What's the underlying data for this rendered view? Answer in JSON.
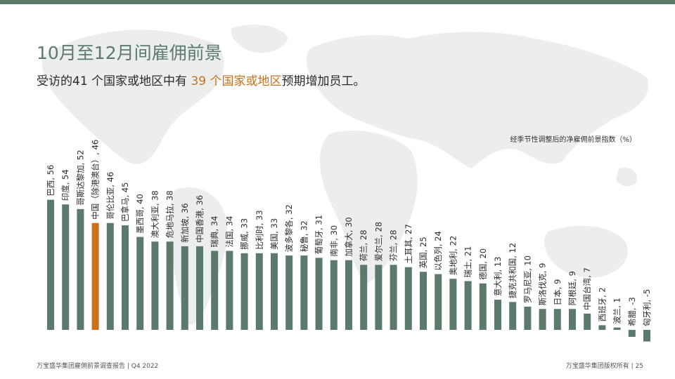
{
  "page": {
    "title": "10月至12月间雇佣前景",
    "subtitle_pre": "受访的41 个国家或地区中有 ",
    "subtitle_highlight": "39 个国家或地区",
    "subtitle_post": "预期增加员工。",
    "note": "经季节性调整后的净雇佣前景指数（%）",
    "footer_left": "万宝盛华集团雇佣前景调查报告 |  Q4 2022",
    "footer_right": "万宝盛华集团版权所有 |  25"
  },
  "colors": {
    "bar": "#5b7a6c",
    "highlight": "#c8701c",
    "title": "#5b7a6c",
    "map": "#eceeed"
  },
  "chart_data": {
    "type": "bar",
    "highlight_index": 3,
    "categories": [
      "巴西",
      "印度",
      "哥斯达黎加",
      "中国（除港澳台）",
      "哥伦比亚",
      "巴拿马",
      "墨西哥",
      "澳大利亚",
      "危地马拉",
      "新加坡",
      "中国香港",
      "瑞典",
      "法国",
      "挪威",
      "比利时",
      "美国",
      "波多黎各",
      "秘鲁",
      "葡萄牙",
      "南非",
      "加拿大",
      "荷兰",
      "爱尔兰",
      "芬兰",
      "土耳其",
      "英国",
      "以色列",
      "奥地利",
      "瑞士",
      "德国",
      "意大利",
      "捷克共和国",
      "罗马尼亚",
      "斯洛伐克",
      "日本",
      "阿根廷",
      "中国台湾",
      "西班牙",
      "波兰",
      "希腊",
      "匈牙利"
    ],
    "values": [
      56,
      54,
      52,
      46,
      46,
      45,
      40,
      38,
      38,
      36,
      36,
      34,
      34,
      33,
      33,
      33,
      32,
      32,
      31,
      30,
      30,
      28,
      28,
      28,
      27,
      25,
      24,
      22,
      21,
      20,
      13,
      12,
      10,
      9,
      9,
      9,
      7,
      2,
      1,
      -3,
      -5
    ],
    "labels": [
      "巴西, 56",
      "印度, 54",
      "哥斯达黎加, 52",
      "中国（除港澳台）, 46",
      "哥伦比亚, 46",
      "巴拿马, 45",
      "墨西哥, 40",
      "澳大利亚, 38",
      "危地马拉, 38",
      "新加坡, 36",
      "中国香港, 36",
      "瑞典, 34",
      "法国, 34",
      "挪威, 33",
      "比利时, 33",
      "美国, 33",
      "波多黎各, 32",
      "秘鲁, 32",
      "葡萄牙, 31",
      "南非, 30",
      "加拿大, 30",
      "荷兰, 28",
      "爱尔兰, 28",
      "芬兰, 28",
      "土耳其, 27",
      "英国, 25",
      "以色列, 24",
      "奥地利, 22",
      "瑞士, 21",
      "德国, 20",
      "意大利, 13",
      "捷克共和国, 12",
      "罗马尼亚, 10",
      "斯洛伐克, 9",
      "日本, 9",
      "阿根廷, 9",
      "中国台湾, 7",
      "西班牙, 2",
      "波兰, 1",
      "希腊, -3",
      "匈牙利, -5"
    ],
    "title": "",
    "xlabel": "",
    "ylabel": "经季节性调整后的净雇佣前景指数（%）",
    "grid": false
  }
}
